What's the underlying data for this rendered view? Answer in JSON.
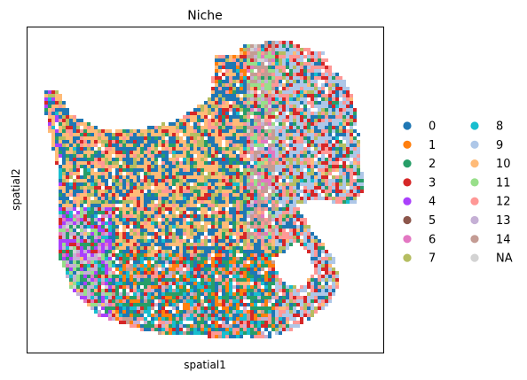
{
  "chart_data": {
    "type": "scatter",
    "title": "Niche",
    "xlabel": "spatial1",
    "ylabel": "spatial2",
    "grid": false,
    "ticks": false,
    "legend_placement": "right",
    "legend_columns": 2,
    "categories": [
      {
        "label": "0",
        "color": "#1f77b4"
      },
      {
        "label": "1",
        "color": "#ff7f0e"
      },
      {
        "label": "2",
        "color": "#279e68"
      },
      {
        "label": "3",
        "color": "#d62728"
      },
      {
        "label": "4",
        "color": "#aa40fc"
      },
      {
        "label": "5",
        "color": "#8c564b"
      },
      {
        "label": "6",
        "color": "#e377c2"
      },
      {
        "label": "7",
        "color": "#b5bd61"
      },
      {
        "label": "8",
        "color": "#17becf"
      },
      {
        "label": "9",
        "color": "#aec7e8"
      },
      {
        "label": "10",
        "color": "#ffbb78"
      },
      {
        "label": "11",
        "color": "#98df8a"
      },
      {
        "label": "12",
        "color": "#ff9896"
      },
      {
        "label": "13",
        "color": "#c5b0d5"
      },
      {
        "label": "14",
        "color": "#c49c94"
      },
      {
        "label": "NA",
        "color": "#d3d3d3"
      }
    ]
  }
}
